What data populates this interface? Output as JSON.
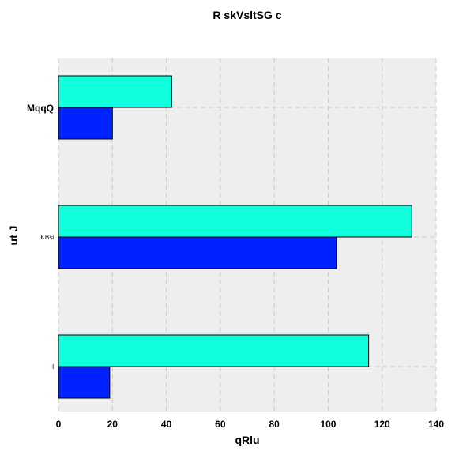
{
  "chart_data": {
    "type": "bar",
    "orientation": "horizontal",
    "title": "R  skVsltSG c",
    "xlabel": "qRlu",
    "ylabel": "ut J",
    "categories": [
      "MqqQ",
      "KBsi",
      "l"
    ],
    "category_label_styles": [
      "bold",
      "small",
      "small"
    ],
    "series": [
      {
        "values": [
          42,
          131,
          115
        ],
        "color": "#11ffdd"
      },
      {
        "values": [
          20,
          103,
          19
        ],
        "color": "#0022ff"
      }
    ],
    "xlim": [
      0,
      140
    ],
    "xticks": [
      0,
      20,
      40,
      60,
      80,
      100,
      120,
      140
    ],
    "grid": true,
    "background": "#eeeeee",
    "legend": "none"
  }
}
